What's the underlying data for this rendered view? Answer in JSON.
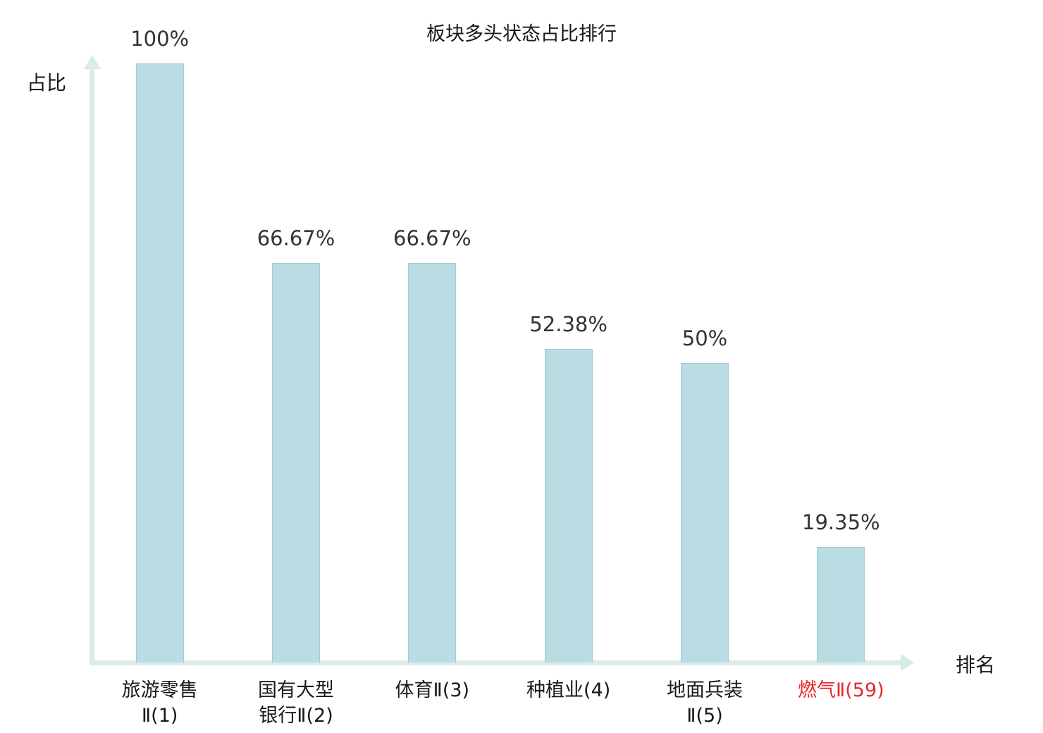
{
  "title": "板块多头状态占比排行",
  "axes": {
    "y_label": "占比",
    "x_label": "排名"
  },
  "chart_data": {
    "type": "bar",
    "categories": [
      "旅游零售\nⅡ(1)",
      "国有大型\n银行Ⅱ(2)",
      "体育Ⅱ(3)",
      "种植业(4)",
      "地面兵装\nⅡ(5)",
      "燃气Ⅱ(59)"
    ],
    "values": [
      100,
      66.67,
      66.67,
      52.38,
      50,
      19.35
    ],
    "value_labels": [
      "100%",
      "66.67%",
      "66.67%",
      "52.38%",
      "50%",
      "19.35%"
    ],
    "title": "板块多头状态占比排行",
    "xlabel": "排名",
    "ylabel": "占比",
    "ylim": [
      0,
      100
    ],
    "grid": false,
    "legend": "none",
    "bar_color": "#b9dde2",
    "bar_border_color": "#a2cbd3",
    "axis_color": "#daece7",
    "label_color": "#1a1a1a",
    "value_label_color": "#333333",
    "highlight_index": 5,
    "highlight_color": "#e8282b"
  }
}
